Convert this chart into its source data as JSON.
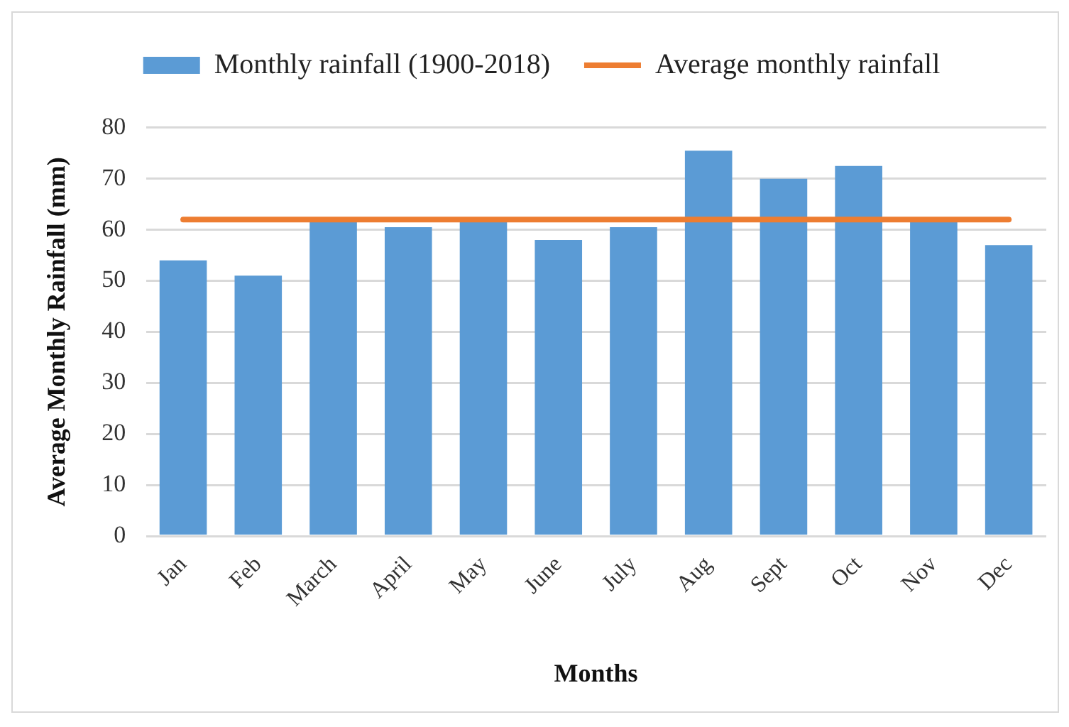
{
  "chart_data": {
    "type": "bar",
    "xlabel": "Months",
    "ylabel": "Average Monthly Rainfall (mm)",
    "categories": [
      "Jan",
      "Feb",
      "March",
      "April",
      "May",
      "June",
      "July",
      "Aug",
      "Sept",
      "Oct",
      "Nov",
      "Dec"
    ],
    "series": [
      {
        "name": "Monthly rainfall (1900-2018)",
        "color": "#5b9bd5",
        "values": [
          54,
          51,
          61.5,
          60.5,
          61.5,
          58,
          60.5,
          75.5,
          70,
          72.5,
          61.5,
          57
        ]
      },
      {
        "name": "Average monthly rainfall",
        "type": "line",
        "color": "#ed7d31",
        "values": [
          62,
          62,
          62,
          62,
          62,
          62,
          62,
          62,
          62,
          62,
          62,
          62
        ]
      }
    ],
    "ylim": [
      0,
      80
    ],
    "yticks": [
      0,
      10,
      20,
      30,
      40,
      50,
      60,
      70,
      80
    ],
    "grid": "y",
    "legend": "top",
    "marker": "none",
    "line_style": "solid"
  }
}
